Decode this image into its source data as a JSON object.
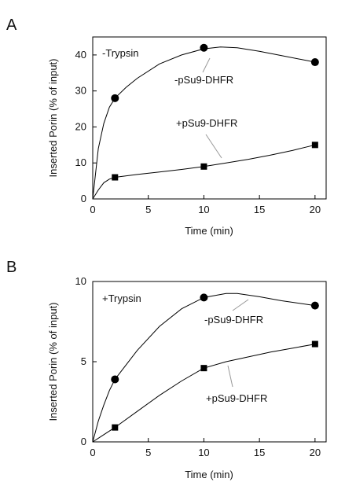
{
  "chart_data": [
    {
      "panel": "A",
      "type": "line",
      "xlabel": "Time (min)",
      "ylabel": "Inserted Porin (% of input)",
      "xlim": [
        0,
        21
      ],
      "ylim": [
        0,
        45
      ],
      "xticks": [
        0,
        5,
        10,
        15,
        20
      ],
      "yticks": [
        0,
        10,
        20,
        30,
        40
      ],
      "condition_label": "-Trypsin",
      "series": [
        {
          "name": "-pSu9-DHFR",
          "marker": "circle",
          "points": [
            [
              2,
              28
            ],
            [
              10,
              42
            ],
            [
              20,
              38
            ]
          ],
          "curve": [
            [
              0,
              0
            ],
            [
              0.5,
              14
            ],
            [
              1,
              21
            ],
            [
              1.5,
              25.5
            ],
            [
              2,
              28
            ],
            [
              3,
              31
            ],
            [
              4,
              33.5
            ],
            [
              6,
              37.5
            ],
            [
              8,
              40
            ],
            [
              10,
              41.7
            ],
            [
              11.5,
              42.2
            ],
            [
              13,
              42
            ],
            [
              15,
              41
            ],
            [
              17,
              39.8
            ],
            [
              20,
              38
            ]
          ]
        },
        {
          "name": "+pSu9-DHFR",
          "marker": "square",
          "points": [
            [
              2,
              6
            ],
            [
              10,
              9
            ],
            [
              20,
              15
            ]
          ],
          "curve": [
            [
              0,
              0
            ],
            [
              0.5,
              2.5
            ],
            [
              1,
              4.5
            ],
            [
              1.5,
              5.5
            ],
            [
              2,
              6
            ],
            [
              4,
              6.8
            ],
            [
              6,
              7.5
            ],
            [
              8,
              8.2
            ],
            [
              10,
              9
            ],
            [
              12,
              10
            ],
            [
              14,
              11
            ],
            [
              16,
              12.2
            ],
            [
              18,
              13.5
            ],
            [
              20,
              15
            ]
          ]
        }
      ],
      "annotations": [
        "-pSu9-DHFR",
        "+pSu9-DHFR"
      ]
    },
    {
      "panel": "B",
      "type": "line",
      "xlabel": "Time (min)",
      "ylabel": "Inserted Porin (% of input)",
      "xlim": [
        0,
        21
      ],
      "ylim": [
        0,
        10
      ],
      "xticks": [
        0,
        5,
        10,
        15,
        20
      ],
      "yticks": [
        0,
        5,
        10
      ],
      "condition_label": "+Trypsin",
      "series": [
        {
          "name": "-pSu9-DHFR",
          "marker": "circle",
          "points": [
            [
              2,
              3.9
            ],
            [
              10,
              9.0
            ],
            [
              20,
              8.5
            ]
          ],
          "curve": [
            [
              0,
              0
            ],
            [
              0.5,
              1.3
            ],
            [
              1,
              2.3
            ],
            [
              1.5,
              3.2
            ],
            [
              2,
              3.9
            ],
            [
              4,
              5.7
            ],
            [
              6,
              7.2
            ],
            [
              8,
              8.3
            ],
            [
              10,
              9.0
            ],
            [
              12,
              9.25
            ],
            [
              13,
              9.25
            ],
            [
              15,
              9.05
            ],
            [
              17,
              8.8
            ],
            [
              20,
              8.5
            ]
          ]
        },
        {
          "name": "+pSu9-DHFR",
          "marker": "square",
          "points": [
            [
              2,
              0.9
            ],
            [
              10,
              4.6
            ],
            [
              20,
              6.1
            ]
          ],
          "curve": [
            [
              0,
              0
            ],
            [
              1,
              0.45
            ],
            [
              2,
              0.9
            ],
            [
              4,
              1.9
            ],
            [
              6,
              2.9
            ],
            [
              8,
              3.8
            ],
            [
              10,
              4.6
            ],
            [
              12,
              5.0
            ],
            [
              14,
              5.3
            ],
            [
              16,
              5.6
            ],
            [
              18,
              5.85
            ],
            [
              20,
              6.1
            ]
          ]
        }
      ],
      "annotations": [
        "-pSu9-DHFR",
        "+pSu9-DHFR"
      ]
    }
  ]
}
